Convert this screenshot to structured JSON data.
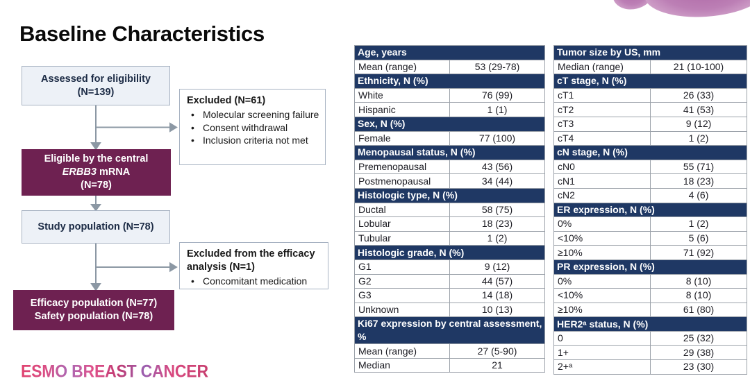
{
  "title": "Baseline Characteristics",
  "logo_text": "ESMO BREAST CANCER",
  "flowchart": {
    "assessed": {
      "line1": "Assessed for eligibility",
      "line2": "(N=139)"
    },
    "excluded1": {
      "title": "Excluded (N=61)",
      "bullets": [
        "Molecular screening failure",
        "Consent withdrawal",
        "Inclusion criteria not met"
      ]
    },
    "eligible": {
      "line1": "Eligible by the central",
      "line2_italic": "ERBB3",
      "line2_rest": "mRNA",
      "line3": "(N=78)"
    },
    "study": {
      "line1": "Study population (N=78)"
    },
    "excluded2": {
      "title": "Excluded from the efficacy analysis (N=1)",
      "bullets": [
        "Concomitant medication"
      ]
    },
    "efficacy": {
      "line1": "Efficacy population (N=77)",
      "line2": "Safety population (N=78)"
    }
  },
  "tables": {
    "middle": {
      "sections": [
        {
          "header": "Age, years",
          "rows": [
            [
              "Mean (range)",
              "53 (29-78)"
            ]
          ]
        },
        {
          "header": "Ethnicity, N (%)",
          "rows": [
            [
              "White",
              "76 (99)"
            ],
            [
              "Hispanic",
              "1 (1)"
            ]
          ]
        },
        {
          "header": "Sex, N (%)",
          "rows": [
            [
              "Female",
              "77 (100)"
            ]
          ]
        },
        {
          "header": "Menopausal status, N (%)",
          "rows": [
            [
              "Premenopausal",
              "43 (56)"
            ],
            [
              "Postmenopausal",
              "34 (44)"
            ]
          ]
        },
        {
          "header": "Histologic type, N (%)",
          "rows": [
            [
              "Ductal",
              "58 (75)"
            ],
            [
              "Lobular",
              "18 (23)"
            ],
            [
              "Tubular",
              "1 (2)"
            ]
          ]
        },
        {
          "header": "Histologic grade, N (%)",
          "rows": [
            [
              "G1",
              "9 (12)"
            ],
            [
              "G2",
              "44 (57)"
            ],
            [
              "G3",
              "14 (18)"
            ],
            [
              "Unknown",
              "10 (13)"
            ]
          ]
        },
        {
          "header": "Ki67 expression by central assessment, %",
          "rows": [
            [
              "Mean (range)",
              "27 (5-90)"
            ],
            [
              "Median",
              "21"
            ]
          ]
        }
      ]
    },
    "right": {
      "sections": [
        {
          "header": "Tumor size by US, mm",
          "rows": [
            [
              "Median (range)",
              "21 (10-100)"
            ]
          ]
        },
        {
          "header": "cT stage, N (%)",
          "rows": [
            [
              "cT1",
              "26 (33)"
            ],
            [
              "cT2",
              "41 (53)"
            ],
            [
              "cT3",
              "9 (12)"
            ],
            [
              "cT4",
              "1 (2)"
            ]
          ]
        },
        {
          "header": "cN stage, N (%)",
          "rows": [
            [
              "cN0",
              "55 (71)"
            ],
            [
              "cN1",
              "18 (23)"
            ],
            [
              "cN2",
              "4 (6)"
            ]
          ]
        },
        {
          "header": "ER expression, N (%)",
          "rows": [
            [
              "0%",
              "1 (2)"
            ],
            [
              "<10%",
              "5 (6)"
            ],
            [
              "≥10%",
              "71 (92)"
            ]
          ]
        },
        {
          "header": "PR expression, N (%)",
          "rows": [
            [
              "0%",
              "8 (10)"
            ],
            [
              "<10%",
              "8 (10)"
            ],
            [
              "≥10%",
              "61 (80)"
            ]
          ]
        },
        {
          "header": "HER2ᵃ status, N (%)",
          "rows": [
            [
              "0",
              "25 (32)"
            ],
            [
              "1+",
              "29 (38)"
            ],
            [
              "2+ᵃ",
              "23 (30)"
            ]
          ]
        }
      ]
    }
  },
  "colors": {
    "header_navy": "#1F3864",
    "maroon": "#6E2151",
    "light_box": "#EDF1F7",
    "box_border": "#A7B2C2",
    "arrow_gray": "#8C98A4",
    "table_border": "#9BA1A9",
    "cell_text": "#1B1B22",
    "box_text": "#1C2B45",
    "petal_mauve": "#BC7FB5"
  }
}
